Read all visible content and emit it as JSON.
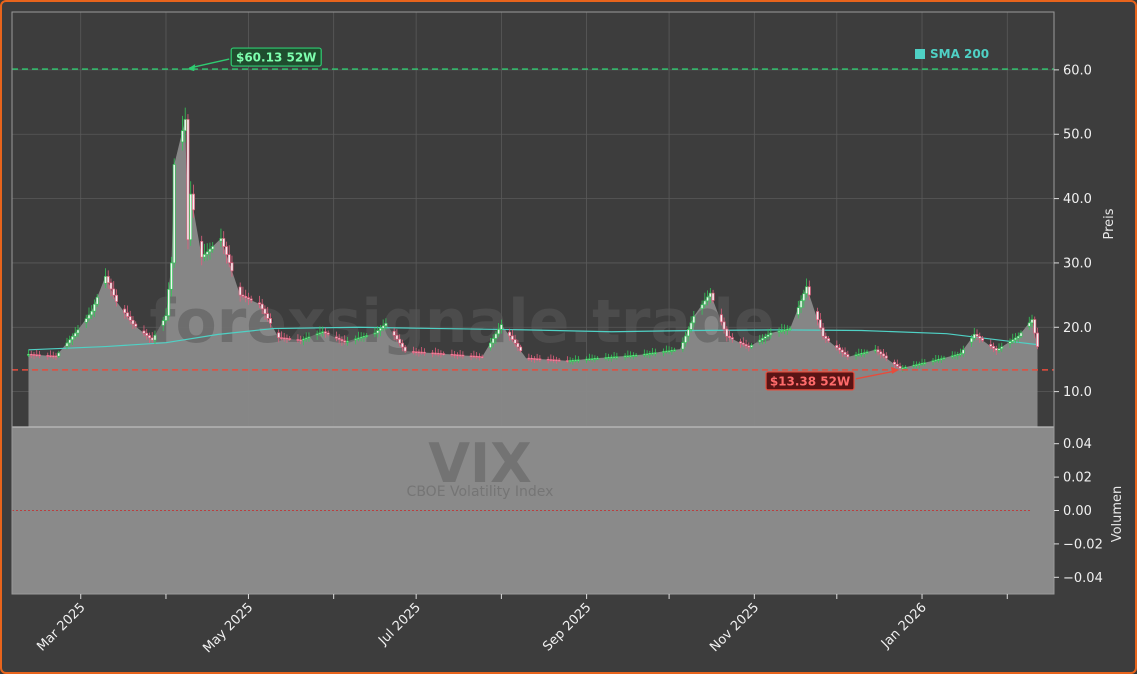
{
  "watermark": {
    "site": "forexsignale.trade",
    "ticker": "VIX",
    "name": "CBOE Volatility Index"
  },
  "legend": {
    "sma_label": "SMA 200"
  },
  "colors": {
    "background": "#3d3d3d",
    "frame": "#e8641c",
    "grid": "#5a5a5a",
    "area": "#8a8a8a",
    "up": "#35c75a",
    "down": "#e0607e",
    "sma": "#4fd1c5",
    "high_line": "#2ecc71",
    "low_line": "#e74c3c"
  },
  "chart_data": {
    "type": "candlestick",
    "x_ticks": [
      "Mar 2025",
      "May 2025",
      "Jul 2025",
      "Sep 2025",
      "Nov 2025",
      "Jan 2026"
    ],
    "y_ticks": [
      "10.0",
      "20.0",
      "30.0",
      "40.0",
      "50.0",
      "60.0"
    ],
    "ylim": [
      4.5,
      69
    ],
    "ylabel": "Preis",
    "high_52w": {
      "value": 60.13,
      "label": "$60.13 52W",
      "date": "2025-04-08"
    },
    "low_52w": {
      "value": 13.38,
      "label": "$13.38 52W",
      "date": "2025-12-24"
    },
    "close_trend": [
      [
        "2025-02-10",
        15.8
      ],
      [
        "2025-02-20",
        15.5
      ],
      [
        "2025-02-28",
        19.6
      ],
      [
        "2025-03-05",
        22.5
      ],
      [
        "2025-03-10",
        27.9
      ],
      [
        "2025-03-14",
        24.0
      ],
      [
        "2025-03-20",
        20.5
      ],
      [
        "2025-03-27",
        18.0
      ],
      [
        "2025-04-01",
        21.8
      ],
      [
        "2025-04-03",
        30.0
      ],
      [
        "2025-04-04",
        45.3
      ],
      [
        "2025-04-08",
        52.3
      ],
      [
        "2025-04-09",
        33.6
      ],
      [
        "2025-04-10",
        40.7
      ],
      [
        "2025-04-14",
        30.9
      ],
      [
        "2025-04-21",
        33.8
      ],
      [
        "2025-04-28",
        25.0
      ],
      [
        "2025-05-05",
        23.6
      ],
      [
        "2025-05-12",
        18.4
      ],
      [
        "2025-05-20",
        18.0
      ],
      [
        "2025-05-28",
        19.3
      ],
      [
        "2025-06-05",
        17.7
      ],
      [
        "2025-06-16",
        19.1
      ],
      [
        "2025-06-20",
        20.6
      ],
      [
        "2025-06-27",
        16.3
      ],
      [
        "2025-07-10",
        15.9
      ],
      [
        "2025-07-25",
        15.4
      ],
      [
        "2025-08-01",
        20.4
      ],
      [
        "2025-08-10",
        15.2
      ],
      [
        "2025-08-25",
        14.8
      ],
      [
        "2025-09-05",
        15.2
      ],
      [
        "2025-09-20",
        15.7
      ],
      [
        "2025-10-05",
        16.6
      ],
      [
        "2025-10-10",
        21.7
      ],
      [
        "2025-10-16",
        25.3
      ],
      [
        "2025-10-22",
        18.6
      ],
      [
        "2025-10-30",
        16.9
      ],
      [
        "2025-11-07",
        19.1
      ],
      [
        "2025-11-14",
        19.8
      ],
      [
        "2025-11-20",
        26.3
      ],
      [
        "2025-11-26",
        18.6
      ],
      [
        "2025-12-05",
        15.4
      ],
      [
        "2025-12-15",
        16.5
      ],
      [
        "2025-12-24",
        13.6
      ],
      [
        "2026-01-05",
        14.8
      ],
      [
        "2026-01-15",
        15.9
      ],
      [
        "2026-01-20",
        18.9
      ],
      [
        "2026-01-28",
        16.4
      ],
      [
        "2026-02-05",
        18.6
      ],
      [
        "2026-02-10",
        21.2
      ],
      [
        "2026-02-12",
        17.0
      ]
    ],
    "sma_200": [
      [
        "2025-02-10",
        16.5
      ],
      [
        "2025-03-10",
        17.0
      ],
      [
        "2025-04-01",
        17.6
      ],
      [
        "2025-04-20",
        18.9
      ],
      [
        "2025-05-10",
        19.8
      ],
      [
        "2025-06-10",
        20.0
      ],
      [
        "2025-07-10",
        19.8
      ],
      [
        "2025-08-10",
        19.6
      ],
      [
        "2025-09-10",
        19.3
      ],
      [
        "2025-10-10",
        19.5
      ],
      [
        "2025-11-10",
        19.6
      ],
      [
        "2025-12-10",
        19.5
      ],
      [
        "2026-01-10",
        19.0
      ],
      [
        "2026-02-12",
        17.3
      ]
    ],
    "volume_panel": {
      "ylabel": "Volumen",
      "y_ticks": [
        "−0.04",
        "−0.02",
        "0.00",
        "0.02",
        "0.04"
      ],
      "ylim": [
        -0.05,
        0.05
      ],
      "value": 0.0
    }
  }
}
